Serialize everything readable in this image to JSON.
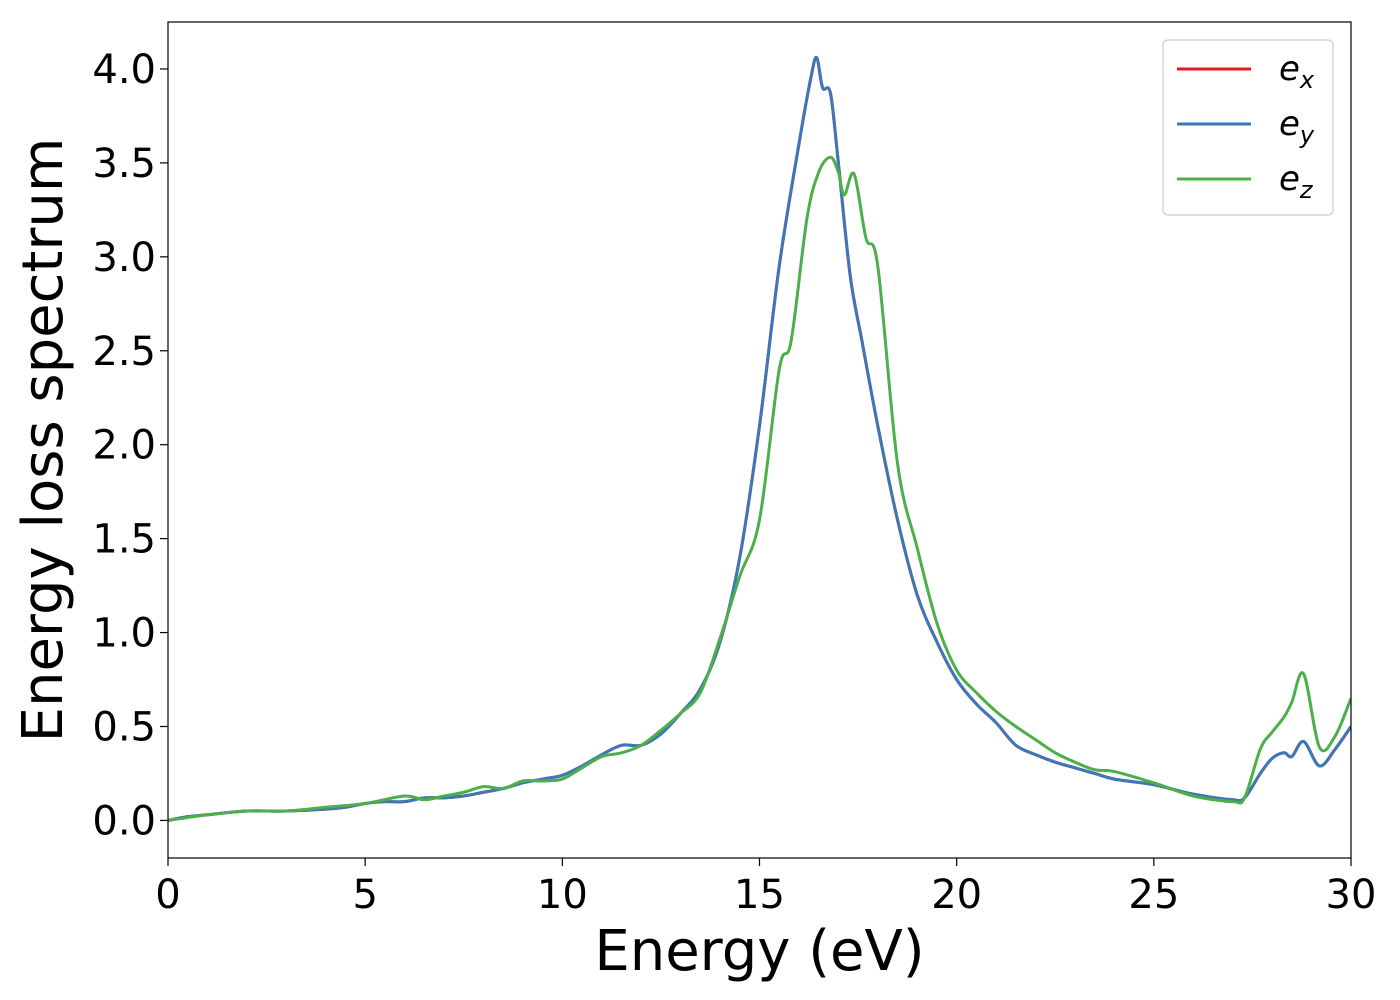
{
  "chart_data": {
    "type": "line",
    "title": "",
    "xlabel": "Energy (eV)",
    "ylabel": "Energy loss spectrum",
    "xlim": [
      0,
      30
    ],
    "ylim": [
      -0.2,
      4.25
    ],
    "xticks": [
      0,
      5,
      10,
      15,
      20,
      25,
      30
    ],
    "xtick_labels": [
      "0",
      "5",
      "10",
      "15",
      "20",
      "25",
      "30"
    ],
    "yticks": [
      0.0,
      0.5,
      1.0,
      1.5,
      2.0,
      2.5,
      3.0,
      3.5,
      4.0
    ],
    "ytick_labels": [
      "0.0",
      "0.5",
      "1.0",
      "1.5",
      "2.0",
      "2.5",
      "3.0",
      "3.5",
      "4.0"
    ],
    "grid": false,
    "legend_position": "top-right",
    "series": [
      {
        "name": "e_x",
        "label_base": "e",
        "label_sub": "x",
        "color": "#e41a1c",
        "points": [
          [
            0,
            0
          ],
          [
            0.5,
            0.02
          ],
          [
            1,
            0.03
          ],
          [
            2,
            0.05
          ],
          [
            3,
            0.05
          ],
          [
            4,
            0.06
          ],
          [
            4.5,
            0.07
          ],
          [
            5,
            0.09
          ],
          [
            5.5,
            0.1
          ],
          [
            6,
            0.1
          ],
          [
            6.5,
            0.12
          ],
          [
            7,
            0.12
          ],
          [
            7.5,
            0.13
          ],
          [
            8,
            0.15
          ],
          [
            8.5,
            0.17
          ],
          [
            9,
            0.2
          ],
          [
            9.5,
            0.22
          ],
          [
            10,
            0.24
          ],
          [
            10.5,
            0.29
          ],
          [
            11,
            0.35
          ],
          [
            11.5,
            0.4
          ],
          [
            12,
            0.4
          ],
          [
            12.5,
            0.46
          ],
          [
            13,
            0.57
          ],
          [
            13.5,
            0.7
          ],
          [
            14,
            0.95
          ],
          [
            14.5,
            1.4
          ],
          [
            15,
            2.1
          ],
          [
            15.5,
            2.95
          ],
          [
            16,
            3.6
          ],
          [
            16.3,
            3.95
          ],
          [
            16.45,
            4.06
          ],
          [
            16.6,
            3.9
          ],
          [
            16.8,
            3.87
          ],
          [
            17,
            3.5
          ],
          [
            17.3,
            2.9
          ],
          [
            17.6,
            2.55
          ],
          [
            18,
            2.1
          ],
          [
            18.5,
            1.6
          ],
          [
            19,
            1.2
          ],
          [
            19.5,
            0.95
          ],
          [
            20,
            0.75
          ],
          [
            20.5,
            0.62
          ],
          [
            21,
            0.52
          ],
          [
            21.5,
            0.4
          ],
          [
            22,
            0.35
          ],
          [
            22.5,
            0.31
          ],
          [
            23,
            0.28
          ],
          [
            23.5,
            0.25
          ],
          [
            24,
            0.22
          ],
          [
            25,
            0.19
          ],
          [
            26,
            0.14
          ],
          [
            27,
            0.11
          ],
          [
            27.3,
            0.12
          ],
          [
            27.7,
            0.25
          ],
          [
            28,
            0.33
          ],
          [
            28.3,
            0.36
          ],
          [
            28.5,
            0.34
          ],
          [
            28.8,
            0.42
          ],
          [
            29.2,
            0.29
          ],
          [
            29.6,
            0.38
          ],
          [
            30,
            0.5
          ]
        ]
      },
      {
        "name": "e_y",
        "label_base": "e",
        "label_sub": "y",
        "color": "#3a78b8",
        "points": [
          [
            0,
            0
          ],
          [
            0.5,
            0.02
          ],
          [
            1,
            0.03
          ],
          [
            2,
            0.05
          ],
          [
            3,
            0.05
          ],
          [
            4,
            0.06
          ],
          [
            4.5,
            0.07
          ],
          [
            5,
            0.09
          ],
          [
            5.5,
            0.1
          ],
          [
            6,
            0.1
          ],
          [
            6.5,
            0.12
          ],
          [
            7,
            0.12
          ],
          [
            7.5,
            0.13
          ],
          [
            8,
            0.15
          ],
          [
            8.5,
            0.17
          ],
          [
            9,
            0.2
          ],
          [
            9.5,
            0.22
          ],
          [
            10,
            0.24
          ],
          [
            10.5,
            0.29
          ],
          [
            11,
            0.35
          ],
          [
            11.5,
            0.4
          ],
          [
            12,
            0.4
          ],
          [
            12.5,
            0.46
          ],
          [
            13,
            0.57
          ],
          [
            13.5,
            0.7
          ],
          [
            14,
            0.95
          ],
          [
            14.5,
            1.4
          ],
          [
            15,
            2.1
          ],
          [
            15.5,
            2.95
          ],
          [
            16,
            3.6
          ],
          [
            16.3,
            3.95
          ],
          [
            16.45,
            4.06
          ],
          [
            16.6,
            3.9
          ],
          [
            16.8,
            3.87
          ],
          [
            17,
            3.5
          ],
          [
            17.3,
            2.9
          ],
          [
            17.6,
            2.55
          ],
          [
            18,
            2.1
          ],
          [
            18.5,
            1.6
          ],
          [
            19,
            1.2
          ],
          [
            19.5,
            0.95
          ],
          [
            20,
            0.75
          ],
          [
            20.5,
            0.62
          ],
          [
            21,
            0.52
          ],
          [
            21.5,
            0.4
          ],
          [
            22,
            0.35
          ],
          [
            22.5,
            0.31
          ],
          [
            23,
            0.28
          ],
          [
            23.5,
            0.25
          ],
          [
            24,
            0.22
          ],
          [
            25,
            0.19
          ],
          [
            26,
            0.14
          ],
          [
            27,
            0.11
          ],
          [
            27.3,
            0.12
          ],
          [
            27.7,
            0.25
          ],
          [
            28,
            0.33
          ],
          [
            28.3,
            0.36
          ],
          [
            28.5,
            0.34
          ],
          [
            28.8,
            0.42
          ],
          [
            29.2,
            0.29
          ],
          [
            29.6,
            0.38
          ],
          [
            30,
            0.5
          ]
        ]
      },
      {
        "name": "e_z",
        "label_base": "e",
        "label_sub": "z",
        "color": "#4daf4a",
        "points": [
          [
            0,
            0
          ],
          [
            1,
            0.03
          ],
          [
            2,
            0.05
          ],
          [
            3,
            0.05
          ],
          [
            4,
            0.07
          ],
          [
            5,
            0.09
          ],
          [
            6,
            0.13
          ],
          [
            6.5,
            0.11
          ],
          [
            7,
            0.13
          ],
          [
            7.5,
            0.15
          ],
          [
            8,
            0.18
          ],
          [
            8.5,
            0.17
          ],
          [
            9,
            0.21
          ],
          [
            9.5,
            0.21
          ],
          [
            10,
            0.22
          ],
          [
            10.5,
            0.28
          ],
          [
            11,
            0.34
          ],
          [
            11.5,
            0.36
          ],
          [
            12,
            0.4
          ],
          [
            12.5,
            0.48
          ],
          [
            13,
            0.57
          ],
          [
            13.5,
            0.68
          ],
          [
            14,
            0.97
          ],
          [
            14.5,
            1.3
          ],
          [
            15,
            1.6
          ],
          [
            15.5,
            2.4
          ],
          [
            15.8,
            2.55
          ],
          [
            16.2,
            3.2
          ],
          [
            16.5,
            3.45
          ],
          [
            16.8,
            3.53
          ],
          [
            17,
            3.45
          ],
          [
            17.15,
            3.33
          ],
          [
            17.4,
            3.44
          ],
          [
            17.7,
            3.1
          ],
          [
            18,
            2.95
          ],
          [
            18.5,
            1.9
          ],
          [
            19,
            1.45
          ],
          [
            19.5,
            1.05
          ],
          [
            20,
            0.8
          ],
          [
            20.5,
            0.68
          ],
          [
            21,
            0.58
          ],
          [
            21.5,
            0.5
          ],
          [
            22,
            0.43
          ],
          [
            22.5,
            0.36
          ],
          [
            23,
            0.31
          ],
          [
            23.5,
            0.27
          ],
          [
            24,
            0.26
          ],
          [
            25,
            0.2
          ],
          [
            26,
            0.13
          ],
          [
            27,
            0.1
          ],
          [
            27.3,
            0.12
          ],
          [
            27.7,
            0.38
          ],
          [
            28,
            0.47
          ],
          [
            28.3,
            0.55
          ],
          [
            28.5,
            0.63
          ],
          [
            28.8,
            0.78
          ],
          [
            29.2,
            0.39
          ],
          [
            29.6,
            0.45
          ],
          [
            30,
            0.65
          ]
        ]
      }
    ]
  }
}
